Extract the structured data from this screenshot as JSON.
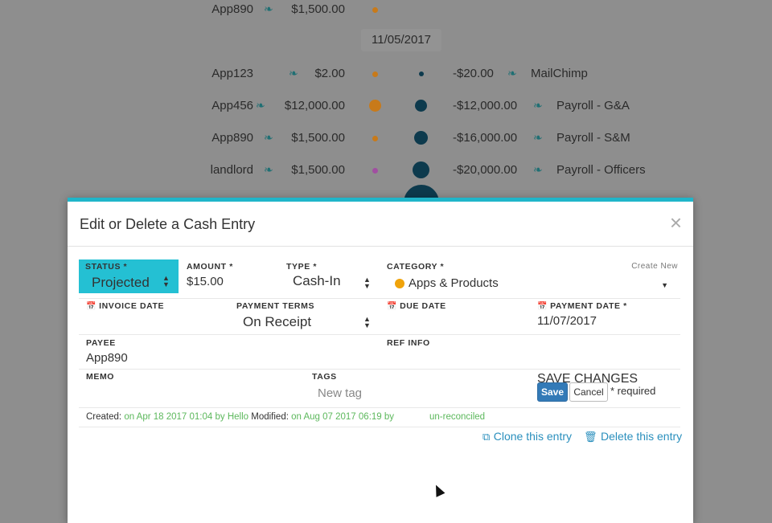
{
  "background": {
    "top_row": {
      "name": "App890",
      "amount": "$1,500.00"
    },
    "date_label": "11/05/2017",
    "rows": [
      {
        "name": "App123",
        "amount": "$2.00",
        "right_amount": "-$20.00",
        "right_name": "MailChimp"
      },
      {
        "name": "App456",
        "amount": "$12,000.00",
        "right_amount": "-$12,000.00",
        "right_name": "Payroll - G&A"
      },
      {
        "name": "App890",
        "amount": "$1,500.00",
        "right_amount": "-$16,000.00",
        "right_name": "Payroll - S&M"
      },
      {
        "name": "landlord",
        "amount": "$1,500.00",
        "right_amount": "-$20,000.00",
        "right_name": "Payroll - Officers"
      }
    ],
    "colors": {
      "leaf": "#1f6f73",
      "dot_orange": "#c87a1a",
      "dot_purple": "#a14fa1",
      "dot_dark": "#0d3a4d"
    }
  },
  "modal": {
    "title": "Edit or Delete a Cash Entry",
    "close_icon": "close-icon",
    "accent_color": "#1fb5c9",
    "status": {
      "label": "STATUS *",
      "value": "Projected"
    },
    "amount": {
      "label": "AMOUNT *",
      "value": "$15.00"
    },
    "type": {
      "label": "TYPE *",
      "value": "Cash-In"
    },
    "category": {
      "label": "CATEGORY *",
      "value": "Apps & Products",
      "create_new": "Create New",
      "dot_color": "#f0a30a"
    },
    "invoice_date": {
      "label": "INVOICE DATE",
      "value": ""
    },
    "payment_terms": {
      "label": "PAYMENT TERMS",
      "value": "On Receipt"
    },
    "due_date": {
      "label": "DUE DATE",
      "value": ""
    },
    "payment_date": {
      "label": "PAYMENT DATE *",
      "value": "11/07/2017"
    },
    "payee": {
      "label": "PAYEE",
      "value": "App890"
    },
    "ref_info": {
      "label": "REF INFO",
      "value": ""
    },
    "memo": {
      "label": "MEMO",
      "value": ""
    },
    "tags": {
      "label": "TAGS",
      "placeholder": "New tag"
    },
    "save_changes": {
      "label": "SAVE CHANGES",
      "save": "Save",
      "cancel": "Cancel",
      "required_note": "* required"
    },
    "footer": {
      "created_label": "Created:",
      "created_value": "on Apr 18 2017 01:04 by Hello",
      "modified_label": "Modified:",
      "modified_value": "on Aug 07 2017 06:19 by",
      "reconcile_status": "un-reconciled"
    },
    "actions": {
      "clone": "Clone this entry",
      "delete": "Delete this entry"
    }
  }
}
